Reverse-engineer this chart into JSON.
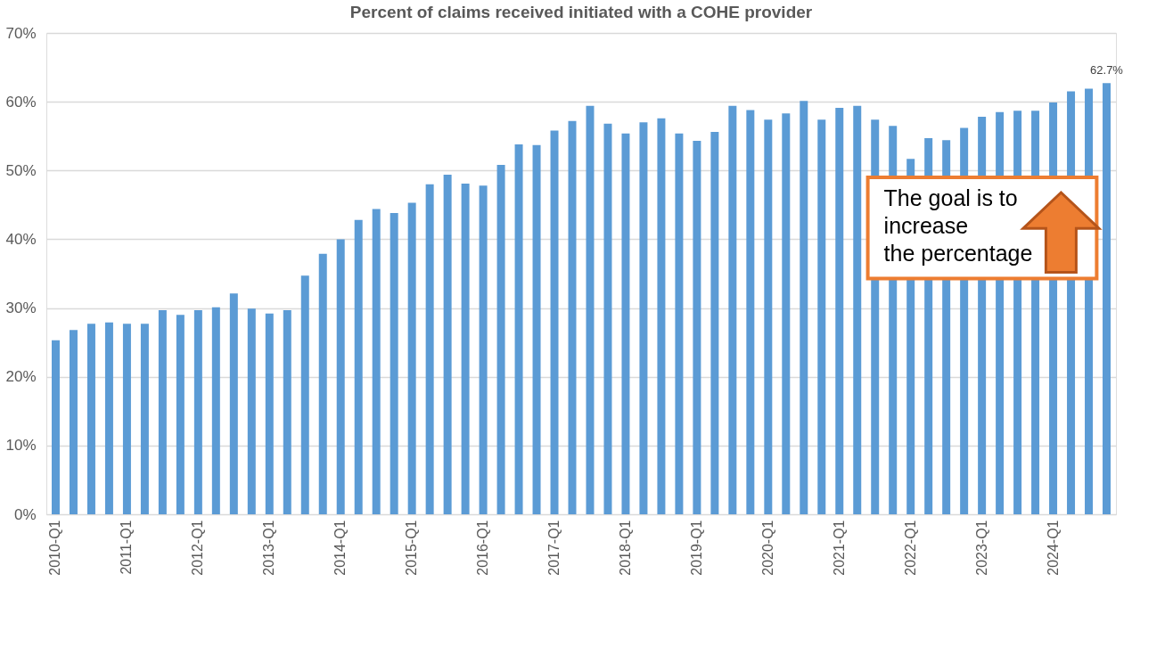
{
  "chart_data": {
    "type": "bar",
    "title": "Percent of claims received initiated with a COHE provider",
    "categories": [
      "2010-Q1",
      null,
      null,
      null,
      "2011-Q1",
      null,
      null,
      null,
      "2012-Q1",
      null,
      null,
      null,
      "2013-Q1",
      null,
      null,
      null,
      "2014-Q1",
      null,
      null,
      null,
      "2015-Q1",
      null,
      null,
      null,
      "2016-Q1",
      null,
      null,
      null,
      "2017-Q1",
      null,
      null,
      null,
      "2018-Q1",
      null,
      null,
      null,
      "2019-Q1",
      null,
      null,
      null,
      "2020-Q1",
      null,
      null,
      null,
      "2021-Q1",
      null,
      null,
      null,
      "2022-Q1",
      null,
      null,
      null,
      "2023-Q1",
      null,
      null,
      null,
      "2024-Q1",
      null,
      null,
      null
    ],
    "values": [
      25.3,
      26.8,
      27.7,
      27.9,
      27.7,
      27.7,
      29.7,
      29.0,
      29.7,
      30.1,
      32.1,
      29.9,
      29.2,
      29.7,
      34.7,
      37.9,
      40.0,
      42.8,
      44.4,
      43.8,
      45.3,
      48.0,
      49.4,
      48.1,
      47.8,
      50.8,
      53.8,
      53.7,
      55.8,
      57.2,
      59.4,
      56.8,
      55.4,
      57.0,
      57.6,
      55.4,
      54.3,
      55.6,
      59.4,
      58.8,
      57.4,
      58.3,
      60.1,
      57.4,
      59.1,
      59.4,
      57.4,
      56.5,
      51.7,
      54.7,
      54.4,
      56.2,
      57.8,
      58.5,
      58.7,
      58.7,
      59.9,
      61.5,
      61.9,
      62.7
    ],
    "value_labels": [
      null,
      null,
      null,
      null,
      null,
      null,
      null,
      null,
      null,
      null,
      null,
      null,
      null,
      null,
      null,
      null,
      null,
      null,
      null,
      null,
      null,
      null,
      null,
      null,
      null,
      null,
      null,
      null,
      null,
      null,
      null,
      null,
      null,
      null,
      null,
      null,
      null,
      null,
      null,
      null,
      null,
      null,
      null,
      null,
      null,
      null,
      null,
      null,
      null,
      null,
      null,
      null,
      null,
      null,
      null,
      null,
      null,
      null,
      null,
      "62.7%"
    ],
    "color": "#5b9bd5",
    "ylim": [
      0,
      70
    ],
    "yticks": [
      {
        "value": 0,
        "label": "0%"
      },
      {
        "value": 10,
        "label": "10%"
      },
      {
        "value": 20,
        "label": "20%"
      },
      {
        "value": 30,
        "label": "30%"
      },
      {
        "value": 40,
        "label": "40%"
      },
      {
        "value": 50,
        "label": "50%"
      },
      {
        "value": 60,
        "label": "60%"
      },
      {
        "value": 70,
        "label": "70%"
      }
    ],
    "grid": "y",
    "annotations": [
      "The goal is to\nincrease\nthe percentage"
    ]
  }
}
